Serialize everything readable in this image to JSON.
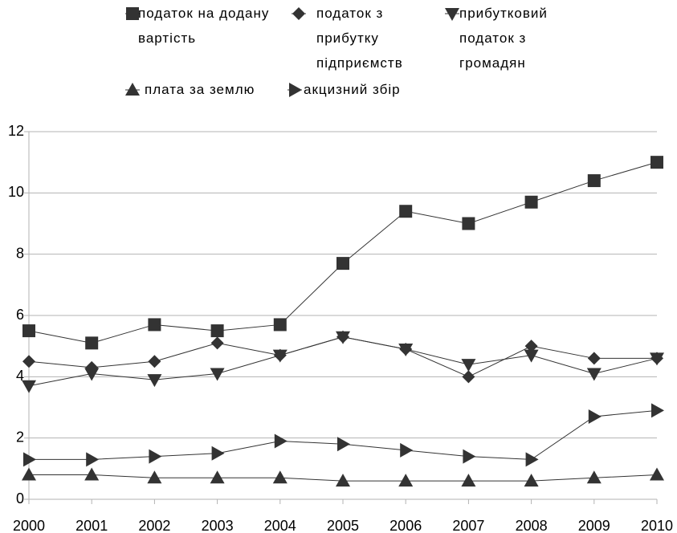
{
  "chart_data": {
    "type": "line",
    "categories": [
      "2000",
      "2001",
      "2002",
      "2003",
      "2004",
      "2005",
      "2006",
      "2007",
      "2008",
      "2009",
      "2010"
    ],
    "series": [
      {
        "name": "податок на додану вартість",
        "color": "#333333",
        "marker": "square",
        "values": [
          5.5,
          5.1,
          5.7,
          5.5,
          5.7,
          7.7,
          9.4,
          9.0,
          9.7,
          10.4,
          11.0
        ]
      },
      {
        "name": "податок з прибутку підприємств",
        "color": "#333333",
        "marker": "diamond",
        "values": [
          4.5,
          4.3,
          4.5,
          5.1,
          4.7,
          5.3,
          4.9,
          4.0,
          5.0,
          4.6,
          4.6
        ]
      },
      {
        "name": "прибутковий податок з громадян",
        "color": "#333333",
        "marker": "triangle-down",
        "values": [
          3.7,
          4.1,
          3.9,
          4.1,
          4.7,
          5.3,
          4.9,
          4.4,
          4.7,
          4.1,
          4.6
        ]
      },
      {
        "name": "плата за землю",
        "color": "#333333",
        "marker": "triangle-up",
        "values": [
          0.8,
          0.8,
          0.7,
          0.7,
          0.7,
          0.6,
          0.6,
          0.6,
          0.6,
          0.7,
          0.8
        ]
      },
      {
        "name": "акцизний збір",
        "color": "#333333",
        "marker": "triangle-right",
        "values": [
          1.3,
          1.3,
          1.4,
          1.5,
          1.9,
          1.8,
          1.6,
          1.4,
          1.3,
          2.7,
          2.9
        ]
      }
    ],
    "ylim": [
      0,
      12
    ],
    "yticks": [
      0,
      2,
      4,
      6,
      8,
      10,
      12
    ],
    "grid": true,
    "legend": "top"
  }
}
